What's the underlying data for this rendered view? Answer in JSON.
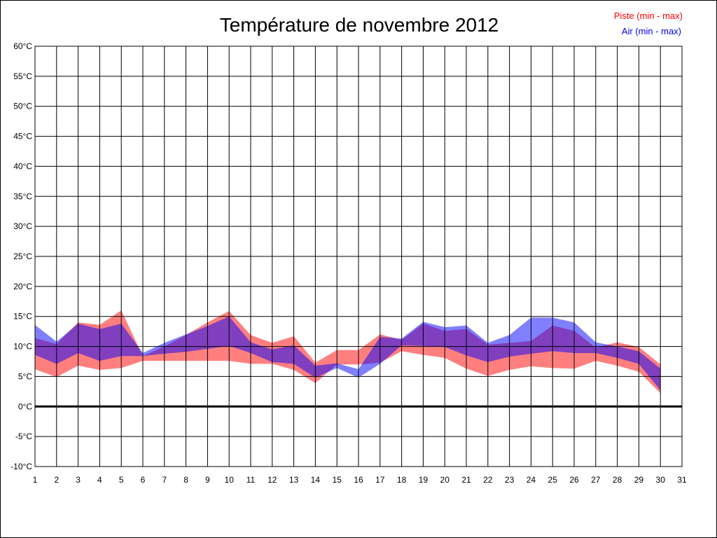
{
  "chart_data": {
    "type": "area",
    "title": "Température de novembre 2012",
    "legend": {
      "placement": "top-right",
      "entries": [
        {
          "label": "Piste (min - max)",
          "color": "#ff0000"
        },
        {
          "label": "Air (min - max)",
          "color": "#0000ff"
        }
      ]
    },
    "x_ticks": [
      "1",
      "2",
      "3",
      "4",
      "5",
      "6",
      "7",
      "8",
      "9",
      "10",
      "11",
      "12",
      "13",
      "14",
      "15",
      "16",
      "17",
      "18",
      "19",
      "20",
      "21",
      "22",
      "23",
      "24",
      "25",
      "26",
      "27",
      "28",
      "29",
      "30",
      "31"
    ],
    "y_ticks": [
      "60°C",
      "55°C",
      "50°C",
      "45°C",
      "40°C",
      "35°C",
      "30°C",
      "25°C",
      "20°C",
      "15°C",
      "10°C",
      "5°C",
      "0°C",
      "-5°C",
      "-10°C"
    ],
    "xlim": [
      1,
      31
    ],
    "ylim": [
      -10,
      60
    ],
    "grid": true,
    "zero_line": true,
    "x": [
      1,
      2,
      3,
      4,
      5,
      6,
      7,
      8,
      9,
      10,
      11,
      12,
      13,
      14,
      15,
      16,
      17,
      18,
      19,
      20,
      21,
      22,
      23,
      24,
      25,
      26,
      27,
      28,
      29,
      30
    ],
    "series": [
      {
        "name": "Piste (min - max)",
        "color": "#ff0000",
        "fill_opacity": 0.5,
        "min": [
          6.2,
          4.9,
          6.8,
          6.1,
          6.4,
          7.6,
          7.6,
          7.6,
          7.6,
          7.6,
          7.1,
          7.1,
          6.1,
          3.9,
          7.0,
          7.0,
          7.3,
          9.2,
          8.6,
          8.1,
          6.3,
          5.1,
          6.1,
          6.7,
          6.4,
          6.3,
          7.6,
          6.8,
          5.8,
          2.2
        ],
        "max": [
          11.4,
          10.4,
          14.0,
          13.6,
          16.0,
          8.4,
          10.0,
          11.9,
          14.0,
          15.9,
          11.9,
          10.6,
          11.7,
          7.3,
          9.4,
          9.4,
          12.0,
          11.1,
          13.8,
          12.6,
          12.9,
          10.3,
          10.6,
          10.9,
          13.5,
          12.6,
          9.8,
          10.7,
          9.9,
          7.0
        ]
      },
      {
        "name": "Air (min - max)",
        "color": "#0000ff",
        "fill_opacity": 0.5,
        "min": [
          8.6,
          7.1,
          8.9,
          7.6,
          8.4,
          8.4,
          8.8,
          9.1,
          9.6,
          10.1,
          8.9,
          7.4,
          7.1,
          4.8,
          6.4,
          4.8,
          7.1,
          10.2,
          10.1,
          9.9,
          8.5,
          7.4,
          8.3,
          8.8,
          9.2,
          8.9,
          8.9,
          8.1,
          7.1,
          2.7
        ],
        "max": [
          13.6,
          10.8,
          13.8,
          12.9,
          13.8,
          8.9,
          10.6,
          12.0,
          13.4,
          15.0,
          10.7,
          9.5,
          10.2,
          6.8,
          7.2,
          6.2,
          11.6,
          11.3,
          14.1,
          13.2,
          13.5,
          10.6,
          11.9,
          14.8,
          14.8,
          14.0,
          10.7,
          10.0,
          9.2,
          6.3
        ]
      }
    ]
  }
}
